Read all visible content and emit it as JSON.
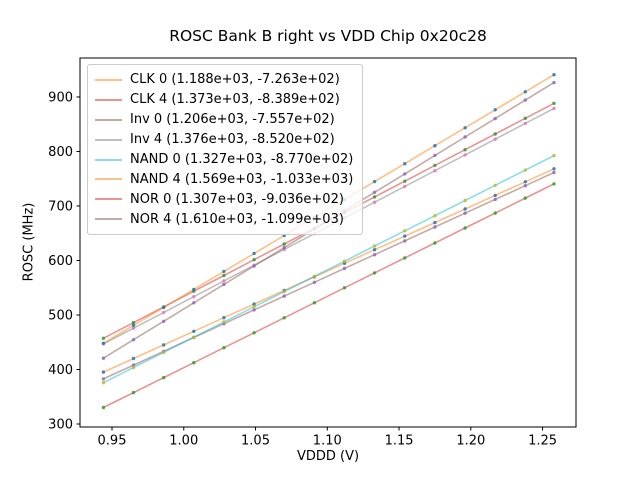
{
  "chart_data": {
    "type": "scatter",
    "title": "ROSC Bank B right vs VDD Chip 0x20c28",
    "xlabel": "VDDD (V)",
    "ylabel": "ROSC (MHz)",
    "grid": false,
    "legend_position": "upper left",
    "xlim": [
      0.9277,
      1.2733
    ],
    "ylim": [
      294.5,
      971.5
    ],
    "xticks": [
      0.95,
      1.0,
      1.05,
      1.1,
      1.15,
      1.2,
      1.25
    ],
    "xtick_labels": [
      "0.95",
      "1.00",
      "1.05",
      "1.10",
      "1.15",
      "1.20",
      "1.25"
    ],
    "yticks": [
      300,
      400,
      500,
      600,
      700,
      800,
      900
    ],
    "ytick_labels": [
      "300",
      "400",
      "500",
      "600",
      "700",
      "800",
      "900"
    ],
    "x": [
      0.944,
      0.965,
      0.986,
      1.007,
      1.028,
      1.049,
      1.07,
      1.091,
      1.112,
      1.133,
      1.154,
      1.175,
      1.196,
      1.217,
      1.238,
      1.258
    ],
    "series": [
      {
        "name": "CLK 0",
        "legend_label": "CLK 0 (1.188e+03, -7.263e+02)",
        "fit_slope": 1188.0,
        "fit_intercept": -726.3,
        "line_color": "#ff7f0e",
        "marker_color": "#1f77b4",
        "values": [
          395.2,
          420.1,
          445.1,
          470.0,
          495.0,
          519.9,
          544.9,
          569.8,
          594.8,
          619.7,
          644.7,
          669.6,
          694.5,
          719.5,
          744.4,
          768.2
        ]
      },
      {
        "name": "CLK 4",
        "legend_label": "CLK 4 (1.373e+03, -8.389e+02)",
        "fit_slope": 1373.0,
        "fit_intercept": -838.9,
        "line_color": "#d62728",
        "marker_color": "#2ca02c",
        "values": [
          457.2,
          486.0,
          514.9,
          543.7,
          572.5,
          601.4,
          630.2,
          659.0,
          687.9,
          716.7,
          745.5,
          774.4,
          803.2,
          832.0,
          860.9,
          888.3
        ]
      },
      {
        "name": "Inv 0",
        "legend_label": "Inv 0 (1.206e+03, -7.557e+02)",
        "fit_slope": 1206.0,
        "fit_intercept": -755.7,
        "line_color": "#8c564b",
        "marker_color": "#9467bd",
        "values": [
          382.8,
          408.1,
          433.4,
          458.7,
          484.1,
          509.4,
          534.7,
          560.0,
          585.4,
          610.7,
          636.0,
          661.4,
          686.7,
          712.0,
          737.3,
          761.4
        ]
      },
      {
        "name": "Inv 4",
        "legend_label": "Inv 4 (1.376e+03, -8.520e+02)",
        "fit_slope": 1376.0,
        "fit_intercept": -852.0,
        "line_color": "#7f7f7f",
        "marker_color": "#e377c2",
        "values": [
          447.0,
          475.8,
          504.7,
          533.6,
          562.5,
          591.4,
          620.3,
          649.2,
          678.1,
          707.0,
          735.9,
          764.8,
          793.7,
          822.6,
          851.5,
          879.0
        ]
      },
      {
        "name": "NAND 0",
        "legend_label": "NAND 0 (1.327e+03, -8.770e+02)",
        "fit_slope": 1327.0,
        "fit_intercept": -877.0,
        "line_color": "#17becf",
        "marker_color": "#bcbd22",
        "values": [
          375.7,
          403.6,
          431.4,
          459.3,
          487.2,
          515.0,
          542.9,
          570.8,
          598.6,
          626.5,
          654.4,
          682.2,
          710.1,
          738.0,
          765.8,
          792.4
        ]
      },
      {
        "name": "NAND 4",
        "legend_label": "NAND 4 (1.569e+03, -1.033e+03)",
        "fit_slope": 1569.0,
        "fit_intercept": -1033.0,
        "line_color": "#ff7f0e",
        "marker_color": "#1f77b4",
        "values": [
          448.1,
          481.1,
          514.0,
          547.0,
          579.9,
          612.9,
          645.8,
          678.8,
          711.7,
          744.7,
          777.6,
          810.6,
          843.5,
          876.5,
          909.4,
          940.8
        ]
      },
      {
        "name": "NOR 0",
        "legend_label": "NOR 0 (1.307e+03, -9.036e+02)",
        "fit_slope": 1307.0,
        "fit_intercept": -903.6,
        "line_color": "#d62728",
        "marker_color": "#2ca02c",
        "values": [
          330.2,
          357.7,
          385.1,
          412.5,
          440.0,
          467.4,
          494.9,
          522.3,
          549.8,
          577.2,
          604.7,
          632.1,
          659.6,
          687.0,
          714.5,
          740.6
        ]
      },
      {
        "name": "NOR 4",
        "legend_label": "NOR 4 (1.610e+03, -1.099e+03)",
        "fit_slope": 1610.0,
        "fit_intercept": -1099.0,
        "line_color": "#8c564b",
        "marker_color": "#9467bd",
        "values": [
          420.8,
          454.7,
          488.5,
          522.3,
          556.1,
          589.9,
          623.7,
          657.5,
          691.3,
          725.1,
          758.9,
          792.8,
          826.6,
          860.4,
          894.2,
          926.4
        ]
      }
    ],
    "style": {
      "spine_color": "#000000",
      "background": "#ffffff",
      "line_alpha": 0.5,
      "marker_alpha": 0.85,
      "legend_border_color": "#cccccc"
    }
  }
}
